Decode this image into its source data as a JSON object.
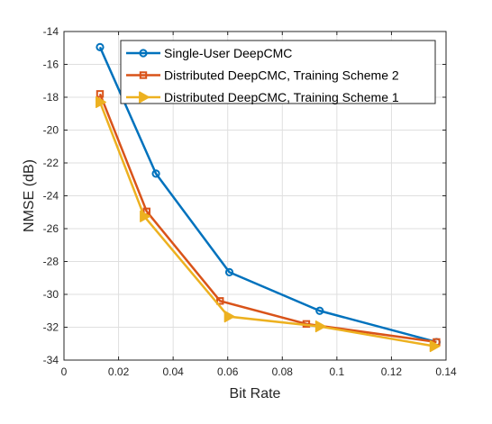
{
  "chart_data": {
    "type": "line",
    "xlabel": "Bit Rate",
    "ylabel": "NMSE (dB)",
    "xlim": [
      0,
      0.14
    ],
    "ylim": [
      -34,
      -14
    ],
    "xticks": [
      0,
      0.02,
      0.04,
      0.06,
      0.08,
      0.1,
      0.12,
      0.14
    ],
    "xtick_labels": [
      "0",
      "0.02",
      "0.04",
      "0.06",
      "0.08",
      "0.1",
      "0.12",
      "0.14"
    ],
    "yticks": [
      -34,
      -32,
      -30,
      -28,
      -26,
      -24,
      -22,
      -20,
      -18,
      -16,
      -14
    ],
    "ytick_labels": [
      "-34",
      "-32",
      "-30",
      "-28",
      "-26",
      "-24",
      "-22",
      "-20",
      "-18",
      "-16",
      "-14"
    ],
    "grid": true,
    "legend_position": "top-right",
    "series": [
      {
        "name": "Single-User DeepCMC",
        "color": "#0072BD",
        "marker": "circle",
        "x": [
          0.0132,
          0.0337,
          0.0606,
          0.0937,
          0.1365
        ],
        "y": [
          -14.95,
          -22.65,
          -28.65,
          -31.0,
          -32.9
        ]
      },
      {
        "name": "Distributed DeepCMC, Training Scheme 2",
        "color": "#D95319",
        "marker": "square",
        "x": [
          0.0132,
          0.0303,
          0.0572,
          0.0888,
          0.1365
        ],
        "y": [
          -17.8,
          -24.95,
          -30.4,
          -31.8,
          -32.9
        ]
      },
      {
        "name": "Distributed DeepCMC, Training Scheme 1",
        "color": "#EDB120",
        "marker": "triangle-right",
        "x": [
          0.0132,
          0.0294,
          0.0603,
          0.0937,
          0.1356
        ],
        "y": [
          -18.3,
          -25.25,
          -31.35,
          -31.95,
          -33.15
        ]
      }
    ]
  }
}
